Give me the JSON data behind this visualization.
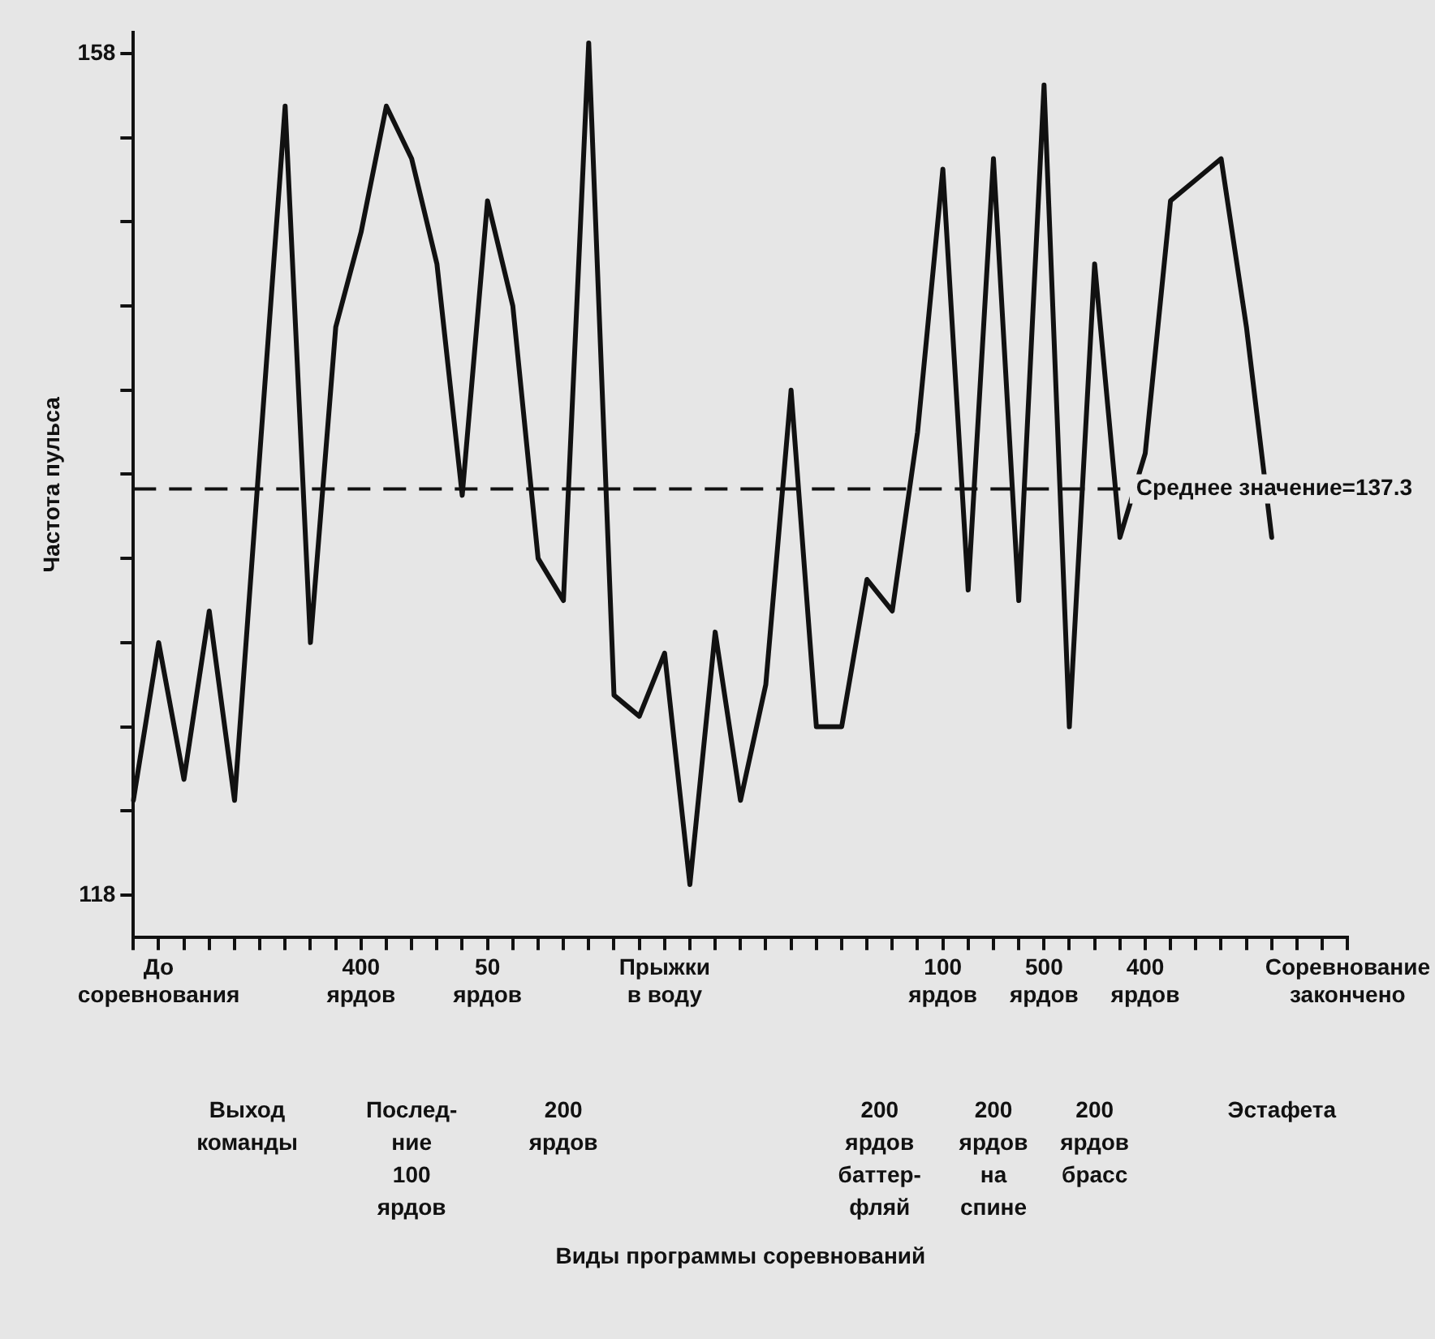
{
  "chart_data": {
    "type": "line",
    "ylabel": "Частота пульса",
    "categories": [
      null,
      "До\nсоревнования",
      null,
      null,
      null,
      null,
      null,
      null,
      null,
      "400\nярдов",
      null,
      null,
      null,
      null,
      "50\nярдов",
      null,
      null,
      null,
      null,
      null,
      null,
      "Прыжки\nв воду",
      null,
      null,
      null,
      null,
      null,
      null,
      null,
      null,
      null,
      null,
      "100\nярдов",
      null,
      null,
      null,
      "500\nярдов",
      null,
      null,
      null,
      "400\nярдов",
      null,
      null,
      null,
      null,
      null,
      null,
      null,
      "Соревнование\nзакончено"
    ],
    "series": [
      {
        "color": "#111111",
        "values": [
          122.5,
          130,
          123.5,
          131.5,
          122.5,
          139,
          155.5,
          130,
          145,
          149.5,
          155.5,
          153,
          148,
          137,
          151,
          146,
          134,
          132,
          158.5,
          127.5,
          126.5,
          129.5,
          118.5,
          130.5,
          122.5,
          128,
          142,
          126,
          126,
          133,
          131.5,
          140,
          152.5,
          132.5,
          153,
          132,
          156.5,
          126,
          148,
          135,
          139,
          151,
          152,
          153,
          145,
          135,
          null,
          null,
          null
        ]
      }
    ],
    "ylim": [
      116,
      159
    ],
    "yticks": [
      118,
      {
        "value": 122,
        "label": null
      },
      {
        "value": 126,
        "label": null
      },
      {
        "value": 130,
        "label": null
      },
      {
        "value": 134,
        "label": null
      },
      {
        "value": 138,
        "label": null
      },
      {
        "value": 142,
        "label": null
      },
      {
        "value": 146,
        "label": null
      },
      {
        "value": 150,
        "label": null
      },
      {
        "value": 154,
        "label": null
      },
      158
    ],
    "ref_lines": [
      {
        "axis": "y",
        "value": 137.3,
        "label": "Среднее значение=137.3",
        "line_style": "dashed",
        "color": "#111111"
      }
    ],
    "annotations": [
      "Выход\nкоманды",
      "Послед-\nние\n100\nярдов",
      "200\nярдов",
      "200\nярдов\nбаттер-\nфляй",
      "200\nярдов\nна\nспине",
      "200\nярдов\nбрасс",
      "Эстафета",
      "Виды программы соревнований"
    ],
    "grid": false,
    "legend": false,
    "marker": "none",
    "line_style": "solid"
  }
}
